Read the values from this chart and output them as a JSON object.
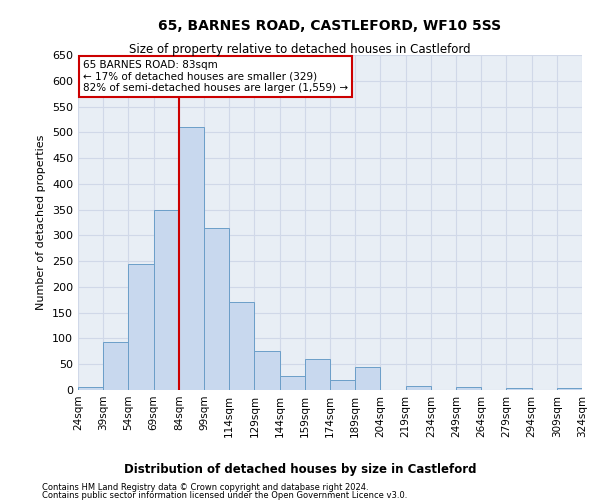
{
  "title": "65, BARNES ROAD, CASTLEFORD, WF10 5SS",
  "subtitle": "Size of property relative to detached houses in Castleford",
  "xlabel": "Distribution of detached houses by size in Castleford",
  "ylabel": "Number of detached properties",
  "bar_color": "#c8d8ee",
  "bar_edge_color": "#6b9ec8",
  "background_color": "#e8eef5",
  "bin_labels": [
    "24sqm",
    "39sqm",
    "54sqm",
    "69sqm",
    "84sqm",
    "99sqm",
    "114sqm",
    "129sqm",
    "144sqm",
    "159sqm",
    "174sqm",
    "189sqm",
    "204sqm",
    "219sqm",
    "234sqm",
    "249sqm",
    "264sqm",
    "279sqm",
    "294sqm",
    "309sqm",
    "324sqm"
  ],
  "bar_heights": [
    5,
    93,
    245,
    350,
    510,
    315,
    170,
    75,
    28,
    60,
    20,
    45,
    0,
    8,
    0,
    5,
    0,
    3,
    0,
    3
  ],
  "ylim": [
    0,
    650
  ],
  "yticks": [
    0,
    50,
    100,
    150,
    200,
    250,
    300,
    350,
    400,
    450,
    500,
    550,
    600,
    650
  ],
  "property_line_x": 84,
  "annotation_text_line1": "65 BARNES ROAD: 83sqm",
  "annotation_text_line2": "← 17% of detached houses are smaller (329)",
  "annotation_text_line3": "82% of semi-detached houses are larger (1,559) →",
  "footer_line1": "Contains HM Land Registry data © Crown copyright and database right 2024.",
  "footer_line2": "Contains public sector information licensed under the Open Government Licence v3.0.",
  "grid_color": "#d0d8e8",
  "annotation_box_color": "#ffffff",
  "annotation_box_edge": "#cc0000",
  "line_color": "#cc0000",
  "figwidth": 6.0,
  "figheight": 5.0,
  "dpi": 100
}
